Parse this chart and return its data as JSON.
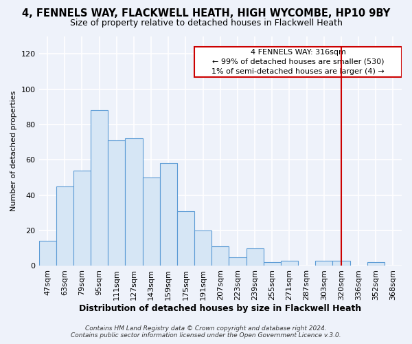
{
  "title": "4, FENNELS WAY, FLACKWELL HEATH, HIGH WYCOMBE, HP10 9BY",
  "subtitle": "Size of property relative to detached houses in Flackwell Heath",
  "xlabel": "Distribution of detached houses by size in Flackwell Heath",
  "ylabel": "Number of detached properties",
  "footnote": "Contains HM Land Registry data © Crown copyright and database right 2024.\nContains public sector information licensed under the Open Government Licence v.3.0.",
  "categories": [
    "47sqm",
    "63sqm",
    "79sqm",
    "95sqm",
    "111sqm",
    "127sqm",
    "143sqm",
    "159sqm",
    "175sqm",
    "191sqm",
    "207sqm",
    "223sqm",
    "239sqm",
    "255sqm",
    "271sqm",
    "287sqm",
    "303sqm",
    "320sqm",
    "336sqm",
    "352sqm",
    "368sqm"
  ],
  "values": [
    14,
    45,
    54,
    88,
    71,
    72,
    50,
    58,
    31,
    20,
    11,
    5,
    10,
    2,
    3,
    0,
    3,
    3,
    0,
    2,
    0
  ],
  "bar_facecolor": "#d6e6f5",
  "bar_edgecolor": "#5b9bd5",
  "highlight_index": 17,
  "annotation_box_color": "#cc0000",
  "annotation_line1": "4 FENNELS WAY: 316sqm",
  "annotation_line2": "← 99% of detached houses are smaller (530)",
  "annotation_line3": "1% of semi-detached houses are larger (4) →",
  "ylim": [
    0,
    130
  ],
  "yticks": [
    0,
    20,
    40,
    60,
    80,
    100,
    120
  ],
  "title_fontsize": 10.5,
  "subtitle_fontsize": 9,
  "xlabel_fontsize": 9,
  "ylabel_fontsize": 8,
  "tick_fontsize": 8,
  "bg_color": "#eef2fa",
  "grid_color": "#ffffff",
  "annotation_fontsize": 8
}
